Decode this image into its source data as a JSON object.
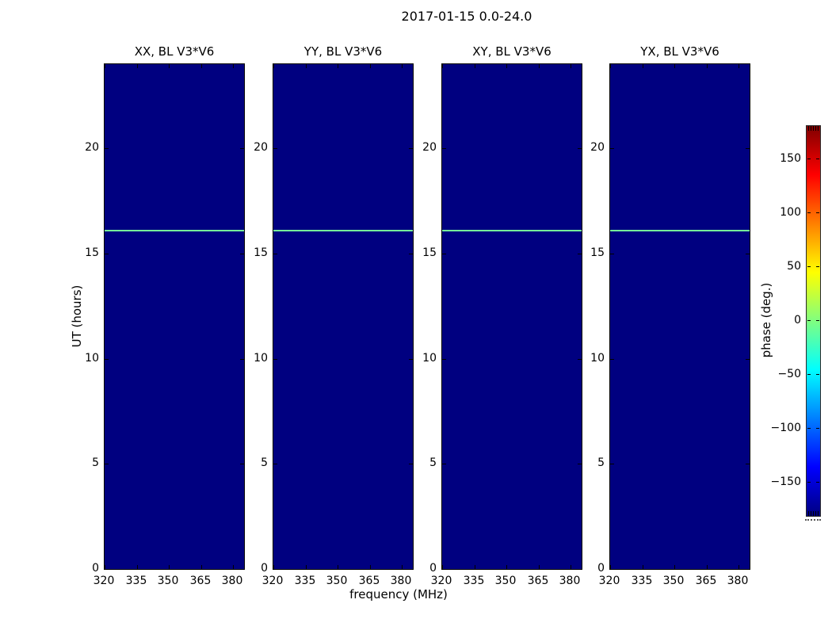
{
  "figure": {
    "title": "2017-01-15 0.0-24.0"
  },
  "chart_data": {
    "type": "heatmap",
    "title": "2017-01-15 0.0-24.0",
    "panels": [
      {
        "title": "XX, BL V3*V6"
      },
      {
        "title": "YY, BL V3*V6"
      },
      {
        "title": "XY, BL V3*V6"
      },
      {
        "title": "YX, BL V3*V6"
      }
    ],
    "xlabel": "frequency (MHz)",
    "ylabel": "UT (hours)",
    "x_ticks": [
      320,
      335,
      350,
      365,
      380
    ],
    "y_ticks": [
      0,
      5,
      10,
      15,
      20
    ],
    "xlim": [
      320,
      385
    ],
    "ylim": [
      0,
      24
    ],
    "background": {
      "description": "uniform phase field filling each panel",
      "phase_deg": -180,
      "color": "#000080"
    },
    "feature_line": {
      "description": "thin horizontal line across all four panels",
      "ut_hours": 16.1,
      "phase_deg_approx": -5,
      "color": "#76fa9a"
    },
    "colorbar": {
      "label": "phase (deg.)",
      "ticks": [
        150,
        100,
        50,
        0,
        -50,
        -100,
        -150
      ],
      "range": [
        -180,
        180
      ],
      "colormap": "jet"
    }
  }
}
